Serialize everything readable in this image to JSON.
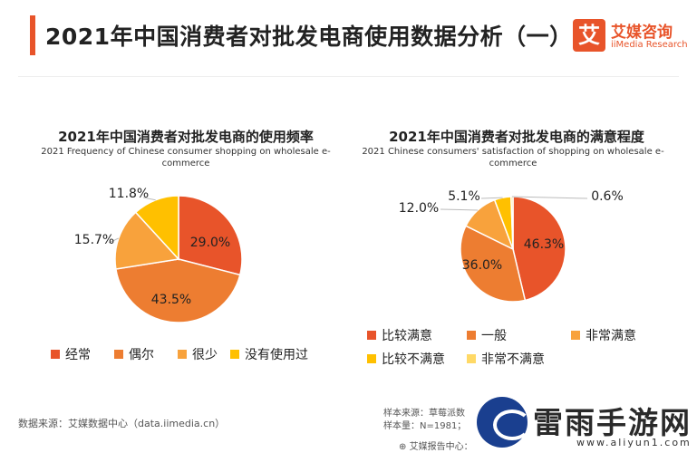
{
  "header": {
    "title": "2021年中国消费者对批发电商使用数据分析（一）",
    "logo_mark": "艾",
    "logo_cn": "艾媒咨询",
    "logo_en": "iiMedia Research",
    "accent_color": "#e8542a"
  },
  "chart_data": [
    {
      "type": "pie",
      "title": "2021年中国消费者对批发电商的使用频率",
      "subtitle": "2021 Frequency of Chinese consumer shopping on wholesale e-commerce",
      "slices": [
        {
          "label": "经常",
          "value": 29.0,
          "pct_label": "29.0%",
          "color": "#e8542a"
        },
        {
          "label": "偶尔",
          "value": 43.5,
          "pct_label": "43.5%",
          "color": "#ed7d31"
        },
        {
          "label": "很少",
          "value": 15.7,
          "pct_label": "15.7%",
          "color": "#f8a23c"
        },
        {
          "label": "没有使用过",
          "value": 11.8,
          "pct_label": "11.8%",
          "color": "#ffc000"
        }
      ],
      "legend": "bottom"
    },
    {
      "type": "pie",
      "title": "2021年中国消费者对批发电商的满意程度",
      "subtitle": "2021 Chinese consumers' satisfaction of shopping on wholesale e-commerce",
      "slices": [
        {
          "label": "比较满意",
          "value": 46.3,
          "pct_label": "46.3%",
          "color": "#e8542a"
        },
        {
          "label": "一般",
          "value": 36.0,
          "pct_label": "36.0%",
          "color": "#ed7d31"
        },
        {
          "label": "非常满意",
          "value": 12.0,
          "pct_label": "12.0%",
          "color": "#f8a23c"
        },
        {
          "label": "比较不满意",
          "value": 5.1,
          "pct_label": "5.1%",
          "color": "#ffc000"
        },
        {
          "label": "非常不满意",
          "value": 0.6,
          "pct_label": "0.6%",
          "color": "#ffd966"
        }
      ],
      "legend": "bottom"
    }
  ],
  "footer": {
    "source_left": "数据来源：艾媒数据中心（data.iimedia.cn）",
    "sample_source": "样本来源：草莓派数",
    "sample_size": "样本量：N=1981；",
    "report_center": "艾媒报告中心："
  },
  "watermark": {
    "title": "雷雨手游网",
    "url": "www.aliyun1.com"
  }
}
